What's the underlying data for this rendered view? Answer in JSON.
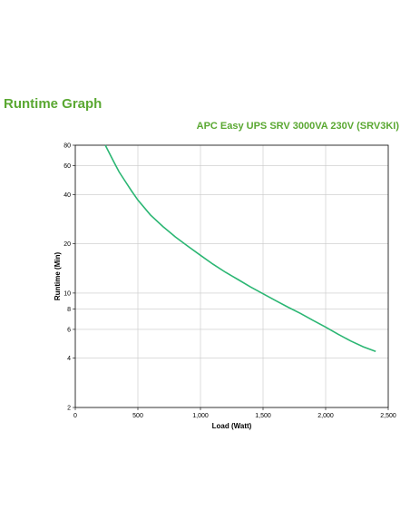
{
  "page": {
    "title": "Runtime Graph"
  },
  "chart_data": {
    "type": "line",
    "title": "APC Easy UPS SRV 3000VA 230V (SRV3KI)",
    "xlabel": "Load (Watt)",
    "ylabel": "Runtime (Min)",
    "xlim": [
      0,
      2500
    ],
    "ylim": [
      2,
      80
    ],
    "yscale": "log",
    "grid": true,
    "line_color": "#2bb673",
    "x_ticks": [
      0,
      500,
      1000,
      1500,
      2000,
      2500
    ],
    "x_tick_labels": [
      "0",
      "500",
      "1,000",
      "1,500",
      "2,000",
      "2,500"
    ],
    "y_ticks": [
      2,
      4,
      6,
      8,
      10,
      20,
      40,
      60,
      80
    ],
    "y_tick_labels": [
      "2",
      "4",
      "6",
      "8",
      "10",
      "20",
      "40",
      "60",
      "80"
    ],
    "series": [
      {
        "x": [
          240,
          300,
          350,
          400,
          450,
          500,
          600,
          700,
          800,
          900,
          1000,
          1100,
          1200,
          1300,
          1400,
          1500,
          1600,
          1700,
          1800,
          1900,
          2000,
          2100,
          2200,
          2300,
          2400
        ],
        "y": [
          80,
          65,
          55,
          48,
          42,
          37,
          30,
          25.5,
          22,
          19.3,
          17,
          15,
          13.4,
          12.1,
          10.9,
          9.9,
          9.0,
          8.2,
          7.5,
          6.8,
          6.2,
          5.6,
          5.1,
          4.7,
          4.4
        ]
      }
    ]
  }
}
